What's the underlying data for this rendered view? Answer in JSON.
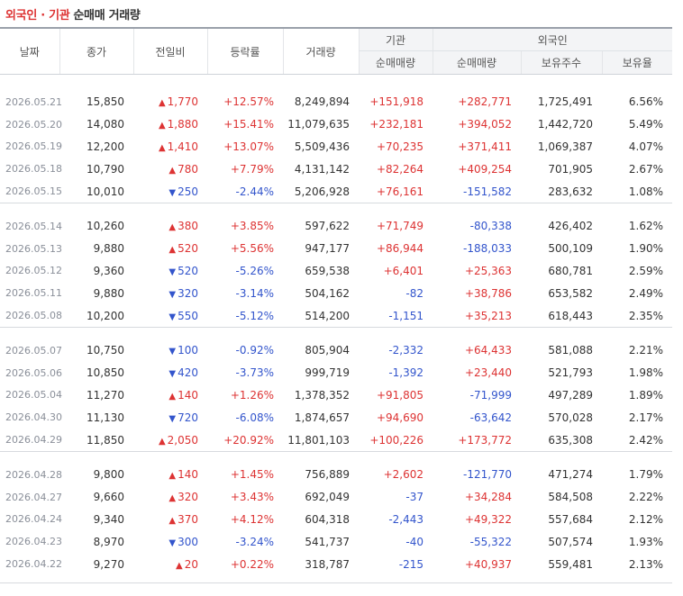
{
  "title": {
    "highlight": "외국인 · 기관",
    "rest": "순매매 거래량"
  },
  "headers": {
    "date": "날짜",
    "close": "종가",
    "change": "전일비",
    "rate": "등락률",
    "volume": "거래량",
    "inst_group": "기관",
    "foreign_group": "외국인",
    "inst_net": "순매매량",
    "foreign_net": "순매매량",
    "foreign_holdings": "보유주수",
    "foreign_ratio": "보유율"
  },
  "colors": {
    "up": "#dd3333",
    "down": "#3355cc"
  },
  "groups": [
    [
      {
        "date": "2026.05.21",
        "close": "15,850",
        "dir": "up",
        "change": "1,770",
        "rate": "+12.57%",
        "volume": "8,249,894",
        "inst": "+151,918",
        "foreign": "+282,771",
        "holdings": "1,725,491",
        "ratio": "6.56%"
      },
      {
        "date": "2026.05.20",
        "close": "14,080",
        "dir": "up",
        "change": "1,880",
        "rate": "+15.41%",
        "volume": "11,079,635",
        "inst": "+232,181",
        "foreign": "+394,052",
        "holdings": "1,442,720",
        "ratio": "5.49%"
      },
      {
        "date": "2026.05.19",
        "close": "12,200",
        "dir": "up",
        "change": "1,410",
        "rate": "+13.07%",
        "volume": "5,509,436",
        "inst": "+70,235",
        "foreign": "+371,411",
        "holdings": "1,069,387",
        "ratio": "4.07%"
      },
      {
        "date": "2026.05.18",
        "close": "10,790",
        "dir": "up",
        "change": "780",
        "rate": "+7.79%",
        "volume": "4,131,142",
        "inst": "+82,264",
        "foreign": "+409,254",
        "holdings": "701,905",
        "ratio": "2.67%"
      },
      {
        "date": "2026.05.15",
        "close": "10,010",
        "dir": "down",
        "change": "250",
        "rate": "-2.44%",
        "volume": "5,206,928",
        "inst": "+76,161",
        "foreign": "-151,582",
        "holdings": "283,632",
        "ratio": "1.08%"
      }
    ],
    [
      {
        "date": "2026.05.14",
        "close": "10,260",
        "dir": "up",
        "change": "380",
        "rate": "+3.85%",
        "volume": "597,622",
        "inst": "+71,749",
        "foreign": "-80,338",
        "holdings": "426,402",
        "ratio": "1.62%"
      },
      {
        "date": "2026.05.13",
        "close": "9,880",
        "dir": "up",
        "change": "520",
        "rate": "+5.56%",
        "volume": "947,177",
        "inst": "+86,944",
        "foreign": "-188,033",
        "holdings": "500,109",
        "ratio": "1.90%"
      },
      {
        "date": "2026.05.12",
        "close": "9,360",
        "dir": "down",
        "change": "520",
        "rate": "-5.26%",
        "volume": "659,538",
        "inst": "+6,401",
        "foreign": "+25,363",
        "holdings": "680,781",
        "ratio": "2.59%"
      },
      {
        "date": "2026.05.11",
        "close": "9,880",
        "dir": "down",
        "change": "320",
        "rate": "-3.14%",
        "volume": "504,162",
        "inst": "-82",
        "foreign": "+38,786",
        "holdings": "653,582",
        "ratio": "2.49%"
      },
      {
        "date": "2026.05.08",
        "close": "10,200",
        "dir": "down",
        "change": "550",
        "rate": "-5.12%",
        "volume": "514,200",
        "inst": "-1,151",
        "foreign": "+35,213",
        "holdings": "618,443",
        "ratio": "2.35%"
      }
    ],
    [
      {
        "date": "2026.05.07",
        "close": "10,750",
        "dir": "down",
        "change": "100",
        "rate": "-0.92%",
        "volume": "805,904",
        "inst": "-2,332",
        "foreign": "+64,433",
        "holdings": "581,088",
        "ratio": "2.21%"
      },
      {
        "date": "2026.05.06",
        "close": "10,850",
        "dir": "down",
        "change": "420",
        "rate": "-3.73%",
        "volume": "999,719",
        "inst": "-1,392",
        "foreign": "+23,440",
        "holdings": "521,793",
        "ratio": "1.98%"
      },
      {
        "date": "2026.05.04",
        "close": "11,270",
        "dir": "up",
        "change": "140",
        "rate": "+1.26%",
        "volume": "1,378,352",
        "inst": "+91,805",
        "foreign": "-71,999",
        "holdings": "497,289",
        "ratio": "1.89%"
      },
      {
        "date": "2026.04.30",
        "close": "11,130",
        "dir": "down",
        "change": "720",
        "rate": "-6.08%",
        "volume": "1,874,657",
        "inst": "+94,690",
        "foreign": "-63,642",
        "holdings": "570,028",
        "ratio": "2.17%"
      },
      {
        "date": "2026.04.29",
        "close": "11,850",
        "dir": "up",
        "change": "2,050",
        "rate": "+20.92%",
        "volume": "11,801,103",
        "inst": "+100,226",
        "foreign": "+173,772",
        "holdings": "635,308",
        "ratio": "2.42%"
      }
    ],
    [
      {
        "date": "2026.04.28",
        "close": "9,800",
        "dir": "up",
        "change": "140",
        "rate": "+1.45%",
        "volume": "756,889",
        "inst": "+2,602",
        "foreign": "-121,770",
        "holdings": "471,274",
        "ratio": "1.79%"
      },
      {
        "date": "2026.04.27",
        "close": "9,660",
        "dir": "up",
        "change": "320",
        "rate": "+3.43%",
        "volume": "692,049",
        "inst": "-37",
        "foreign": "+34,284",
        "holdings": "584,508",
        "ratio": "2.22%"
      },
      {
        "date": "2026.04.24",
        "close": "9,340",
        "dir": "up",
        "change": "370",
        "rate": "+4.12%",
        "volume": "604,318",
        "inst": "-2,443",
        "foreign": "+49,322",
        "holdings": "557,684",
        "ratio": "2.12%"
      },
      {
        "date": "2026.04.23",
        "close": "8,970",
        "dir": "down",
        "change": "300",
        "rate": "-3.24%",
        "volume": "541,737",
        "inst": "-40",
        "foreign": "-55,322",
        "holdings": "507,574",
        "ratio": "1.93%"
      },
      {
        "date": "2026.04.22",
        "close": "9,270",
        "dir": "up",
        "change": "20",
        "rate": "+0.22%",
        "volume": "318,787",
        "inst": "-215",
        "foreign": "+40,937",
        "holdings": "559,481",
        "ratio": "2.13%"
      }
    ]
  ]
}
